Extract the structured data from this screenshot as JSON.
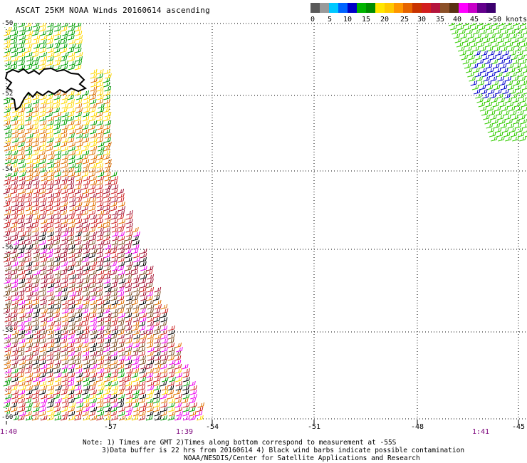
{
  "title": "ASCAT 25KM NOAA Winds 20160614 ascending",
  "legend": {
    "colors": [
      "#5a5a5a",
      "#9a9a9a",
      "#00c8ff",
      "#0064ff",
      "#0000c8",
      "#00b400",
      "#008c00",
      "#ffe600",
      "#ffc800",
      "#ff9600",
      "#e66400",
      "#c83200",
      "#d21e1e",
      "#b4143c",
      "#8c5028",
      "#5a3214",
      "#ff00ff",
      "#c800c8",
      "#64008c",
      "#3c006e"
    ],
    "labels": [
      "0",
      "5",
      "10",
      "15",
      "20",
      "25",
      "30",
      "35",
      "40",
      "45",
      ">50 knots"
    ]
  },
  "map": {
    "lat_labels": [
      "-50",
      "-52",
      "-54",
      "-56",
      "-58",
      "-60"
    ],
    "lon_labels": [
      "-57",
      "-54",
      "-51",
      "-48",
      "-45"
    ],
    "times": [
      "1:40",
      "1:39",
      "1:41"
    ],
    "barb_colors": {
      "green": "#00a000",
      "lightgreen": "#33cc00",
      "blue": "#0000cc",
      "yellow": "#ffd700",
      "orange": "#e07000",
      "red": "#cc2222",
      "darkred": "#a01030",
      "brown": "#7a4a20",
      "magenta": "#ee00ee",
      "black": "#000000"
    }
  },
  "notes": {
    "line1": "Note: 1) Times are GMT 2)Times along bottom correspond to measurement at -55S",
    "line2": "3)Data buffer is 22 hrs from 20160614 4) Black wind barbs indicate possible contamination",
    "line3": "NOAA/NESDIS/Center for Satellite Applications and Research"
  }
}
